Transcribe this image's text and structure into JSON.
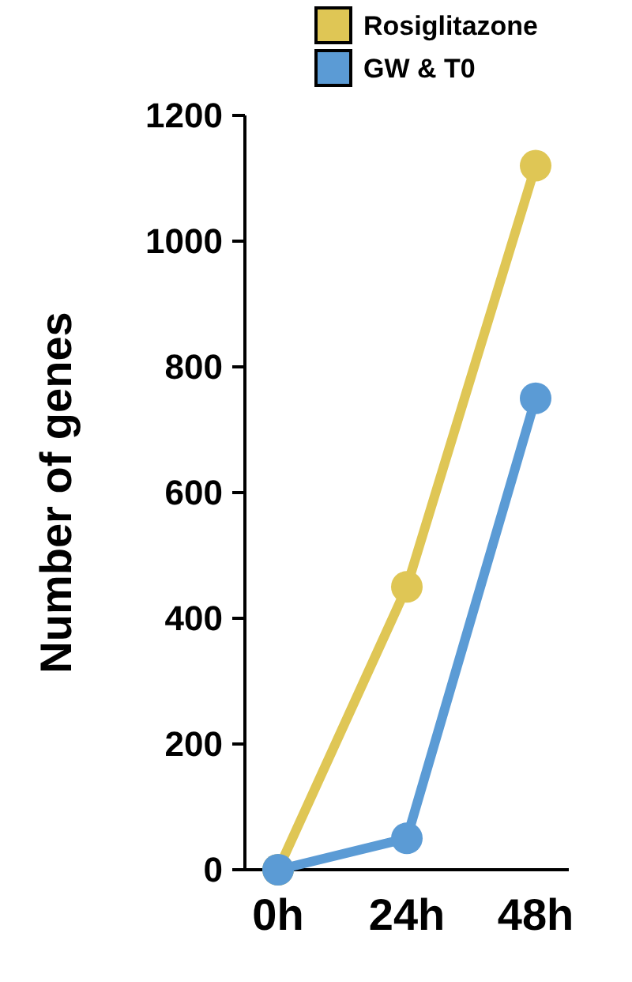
{
  "chart_data": {
    "type": "line",
    "ylabel": "Number of genes",
    "categories": [
      "0h",
      "24h",
      "48h"
    ],
    "series": [
      {
        "name": "Rosiglitazone",
        "color": "#dfc655",
        "values": [
          0,
          450,
          1120
        ]
      },
      {
        "name": "GW & T0",
        "color": "#5b9bd5",
        "values": [
          0,
          50,
          750
        ]
      }
    ],
    "ylim": [
      0,
      1200
    ],
    "yticks": [
      0,
      200,
      400,
      600,
      800,
      1000,
      1200
    ],
    "marker": "circle",
    "legend": "top right",
    "grid": false
  }
}
